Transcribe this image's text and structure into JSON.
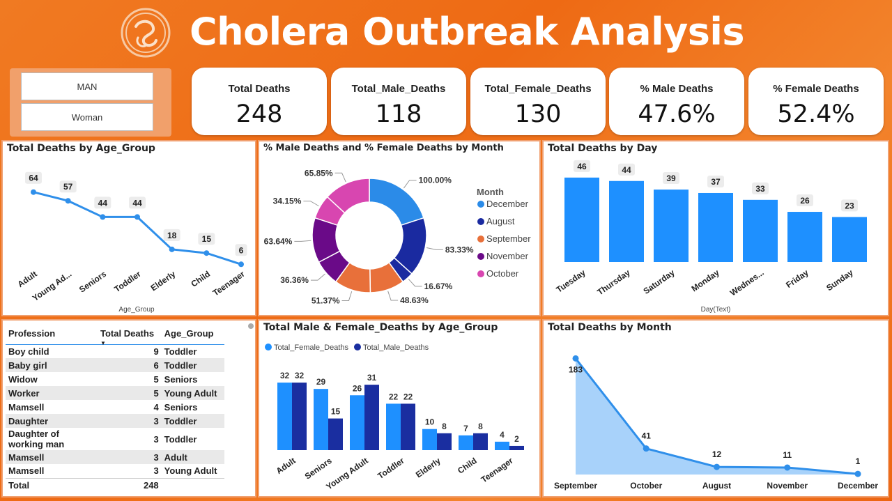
{
  "header": {
    "title": "Cholera Outbreak Analysis"
  },
  "slicer": {
    "options": [
      "MAN",
      "Woman"
    ]
  },
  "kpis": [
    {
      "label": "Total Deaths",
      "value": "248"
    },
    {
      "label": "Total_Male_Deaths",
      "value": "118"
    },
    {
      "label": "Total_Female_Deaths",
      "value": "130"
    },
    {
      "label": "% Male Deaths",
      "value": "47.6%"
    },
    {
      "label": "% Female Deaths",
      "value": "52.4%"
    }
  ],
  "colors": {
    "accent": "#2f8fea",
    "bar_light": "#1e90ff",
    "bar_dark": "#1a2ea0",
    "area_fill": "#a8d2fa",
    "orange": "#ee6a14",
    "dec": "#2b8be8",
    "aug": "#1a2aa0",
    "sep": "#e8703a",
    "nov": "#6a0a88",
    "oct": "#d846b0"
  },
  "table": {
    "headers": [
      "Profession",
      "Total Deaths",
      "Age_Group"
    ],
    "rows": [
      [
        "Boy child",
        "9",
        "Toddler"
      ],
      [
        "Baby girl",
        "6",
        "Toddler"
      ],
      [
        "Widow",
        "5",
        "Seniors"
      ],
      [
        "Worker",
        "5",
        "Young Adult"
      ],
      [
        "Mamsell",
        "4",
        "Seniors"
      ],
      [
        "Daughter",
        "3",
        "Toddler"
      ],
      [
        "Daughter of working man",
        "3",
        "Toddler"
      ],
      [
        "Mamsell",
        "3",
        "Adult"
      ],
      [
        "Mamsell",
        "3",
        "Young Adult"
      ]
    ],
    "total_label": "Total",
    "total_value": "248"
  },
  "chart_data": [
    {
      "id": "age",
      "type": "line",
      "title": "Total Deaths by Age_Group",
      "xlabel": "Age_Group",
      "ylabel": "",
      "categories": [
        "Adult",
        "Young Ad...",
        "Seniors",
        "Toddler",
        "Elderly",
        "Child",
        "Teenager"
      ],
      "values": [
        64,
        57,
        44,
        44,
        18,
        15,
        6
      ],
      "ylim": [
        0,
        70
      ],
      "grid": false
    },
    {
      "id": "donut",
      "type": "pie",
      "title": "% Male Deaths and % Female Deaths by Month",
      "legend_title": "Month",
      "legend": [
        "December",
        "August",
        "September",
        "November",
        "October"
      ],
      "slices": [
        {
          "month": "December",
          "value": 100.0,
          "label": "100.00%"
        },
        {
          "month": "August",
          "value": 83.33,
          "label": "83.33%"
        },
        {
          "month": "August",
          "value": 16.67,
          "label": "16.67%"
        },
        {
          "month": "September",
          "value": 48.63,
          "label": "48.63%"
        },
        {
          "month": "September",
          "value": 51.37,
          "label": "51.37%"
        },
        {
          "month": "November",
          "value": 36.36,
          "label": "36.36%"
        },
        {
          "month": "November",
          "value": 63.64,
          "label": "63.64%"
        },
        {
          "month": "October",
          "value": 34.15,
          "label": "34.15%"
        },
        {
          "month": "October",
          "value": 65.85,
          "label": "65.85%"
        }
      ]
    },
    {
      "id": "day",
      "type": "bar",
      "title": "Total Deaths by Day",
      "xlabel": "Day(Text)",
      "ylabel": "",
      "categories": [
        "Tuesday",
        "Thursday",
        "Saturday",
        "Monday",
        "Wednes...",
        "Friday",
        "Sunday"
      ],
      "values": [
        46,
        44,
        39,
        37,
        33,
        26,
        23
      ],
      "ylim": [
        0,
        50
      ],
      "grid": false
    },
    {
      "id": "mf",
      "type": "bar",
      "title": "Total Male & Female_Deaths by Age_Group",
      "categories": [
        "Adult",
        "Seniors",
        "Young Adult",
        "Toddler",
        "Elderly",
        "Child",
        "Teenager"
      ],
      "series": [
        {
          "name": "Total_Female_Deaths",
          "values": [
            32,
            29,
            26,
            22,
            10,
            7,
            4
          ]
        },
        {
          "name": "Total_Male_Deaths",
          "values": [
            32,
            15,
            31,
            22,
            8,
            8,
            2
          ]
        }
      ],
      "legend_position": "top-left",
      "ylim": [
        0,
        35
      ],
      "grid": false
    },
    {
      "id": "month",
      "type": "area",
      "title": "Total Deaths by Month",
      "categories": [
        "September",
        "October",
        "August",
        "November",
        "December"
      ],
      "values": [
        183,
        41,
        12,
        11,
        1
      ],
      "ylim": [
        0,
        190
      ],
      "grid": false
    }
  ]
}
